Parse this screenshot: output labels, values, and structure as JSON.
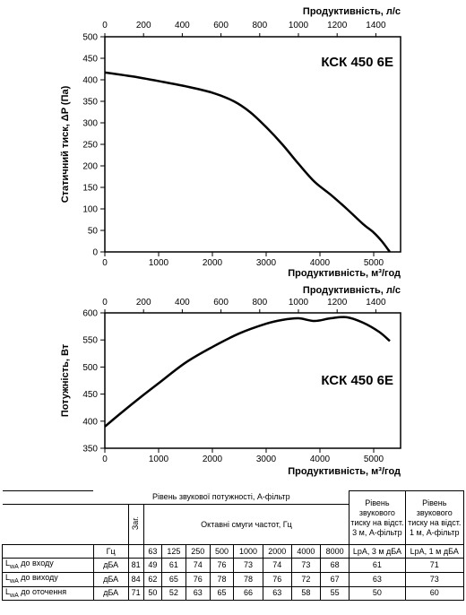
{
  "chart_data": [
    {
      "type": "line",
      "model": "КСК 450 6E",
      "xlabel": "Продуктивність, м³/год",
      "ylabel": "Статичний тиск, ΔP (Па)",
      "top_axis_label": "Продуктивність, л/с",
      "xlim": [
        0,
        5500
      ],
      "ylim": [
        0,
        500
      ],
      "x_ticks": [
        0,
        1000,
        2000,
        3000,
        4000,
        5000
      ],
      "y_ticks": [
        0,
        50,
        100,
        150,
        200,
        250,
        300,
        350,
        400,
        450,
        500
      ],
      "top_ticks": [
        0,
        200,
        400,
        600,
        800,
        1000,
        1200,
        1400
      ],
      "grid": false,
      "series": [
        {
          "x": [
            0,
            500,
            1000,
            1500,
            2000,
            2400,
            2700,
            3000,
            3300,
            3600,
            3900,
            4200,
            4500,
            4800,
            5000,
            5150,
            5300
          ],
          "y": [
            417,
            408,
            397,
            385,
            370,
            350,
            325,
            290,
            250,
            205,
            163,
            133,
            100,
            65,
            45,
            25,
            0
          ]
        }
      ]
    },
    {
      "type": "line",
      "model": "КСК 450 6E",
      "xlabel": "Продуктивність, м³/год",
      "ylabel": "Потужність, Вт",
      "top_axis_label": "Продуктивність, л/с",
      "xlim": [
        0,
        5500
      ],
      "ylim": [
        350,
        600
      ],
      "x_ticks": [
        0,
        1000,
        2000,
        3000,
        4000,
        5000
      ],
      "y_ticks": [
        350,
        400,
        450,
        500,
        550,
        600
      ],
      "top_ticks": [
        0,
        200,
        400,
        600,
        800,
        1000,
        1200,
        1400
      ],
      "grid": false,
      "series": [
        {
          "x": [
            0,
            300,
            700,
            1000,
            1500,
            2000,
            2500,
            3000,
            3300,
            3600,
            3900,
            4200,
            4500,
            4800,
            5100,
            5300
          ],
          "y": [
            390,
            415,
            447,
            470,
            508,
            537,
            562,
            580,
            587,
            590,
            585,
            590,
            592,
            582,
            565,
            548
          ]
        }
      ]
    }
  ],
  "table": {
    "header_main": "Рівень звукової потужності, A-фільтр",
    "header_total": "Заг.",
    "header_octave": "Октавні смуги частот, Гц",
    "header_lpa3": "Рівень звукового тиску на відст. 3 м, A-фільтр",
    "header_lpa1": "Рівень звукового тиску на відст. 1 м, A-фільтр",
    "unit_hz": "Гц",
    "freqs": [
      "63",
      "125",
      "250",
      "500",
      "1000",
      "2000",
      "4000",
      "8000"
    ],
    "lpa3_unit": "LpA, 3 м дБА",
    "lpa1_unit": "LpA, 1 м дБА",
    "rows": [
      {
        "label_main": "L",
        "label_sub": "wA",
        "label_rest": " до входу",
        "unit": "дБА",
        "total": "81",
        "bands": [
          "49",
          "61",
          "74",
          "76",
          "73",
          "74",
          "73",
          "68"
        ],
        "lpa3": "61",
        "lpa1": "71"
      },
      {
        "label_main": "L",
        "label_sub": "wA",
        "label_rest": " до виходу",
        "unit": "дБА",
        "total": "84",
        "bands": [
          "62",
          "65",
          "76",
          "78",
          "78",
          "76",
          "72",
          "67"
        ],
        "lpa3": "63",
        "lpa1": "73"
      },
      {
        "label_main": "L",
        "label_sub": "wA",
        "label_rest": " до оточення",
        "unit": "дБА",
        "total": "71",
        "bands": [
          "50",
          "52",
          "63",
          "65",
          "66",
          "63",
          "58",
          "55"
        ],
        "lpa3": "50",
        "lpa1": "60"
      }
    ]
  }
}
